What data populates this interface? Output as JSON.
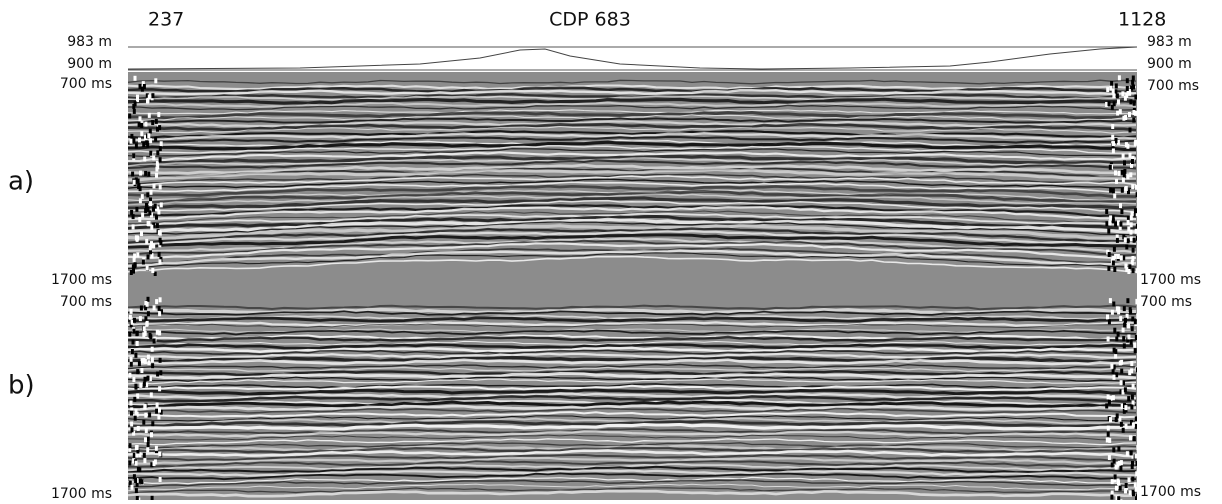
{
  "header": {
    "cdp_start": "237",
    "cdp_label": "CDP  683",
    "cdp_end": "1128"
  },
  "elevation": {
    "left": {
      "top": "983 m",
      "bottom": "900 m"
    },
    "right": {
      "top": "983 m",
      "bottom": "900 m"
    }
  },
  "panels": [
    {
      "label": "a)",
      "left": {
        "top": "700 ms",
        "bottom": "1700 ms"
      },
      "right": {
        "top": "700 ms",
        "bottom": "1700 ms"
      }
    },
    {
      "label": "b)",
      "left": {
        "top": "700 ms",
        "bottom": "1700 ms"
      },
      "right": {
        "top": "700 ms",
        "bottom": "1700 ms"
      }
    }
  ]
}
